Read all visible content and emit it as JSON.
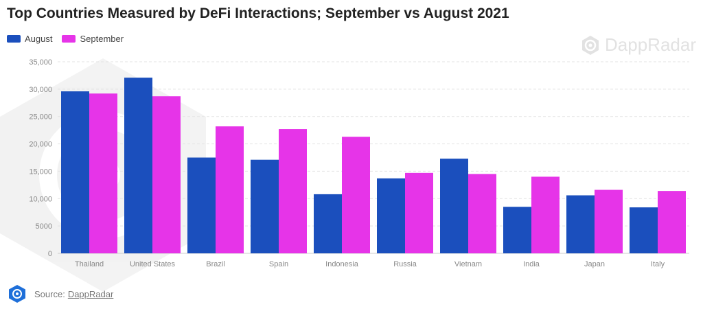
{
  "title": "Top Countries Measured by DeFi Interactions; September vs August 2021",
  "legend": {
    "august": "August",
    "september": "September"
  },
  "watermark": {
    "text": "DappRadar",
    "icon": "dappradar-logo-icon"
  },
  "footer": {
    "prefix": "Source:",
    "link": "DappRadar",
    "icon": "dappradar-logo-icon"
  },
  "colors": {
    "august": "#1b4fbd",
    "september": "#e634e8",
    "grid": "#e3e3e3"
  },
  "chart_data": {
    "type": "bar",
    "title": "Top Countries Measured by DeFi Interactions; September vs August 2021",
    "xlabel": "",
    "ylabel": "",
    "ylim": [
      0,
      35000
    ],
    "yticks": [
      "0",
      "5000",
      "10,000",
      "15,000",
      "20,000",
      "25,000",
      "30,000",
      "35,000"
    ],
    "categories": [
      "Thailand",
      "United States",
      "Brazil",
      "Spain",
      "Indonesia",
      "Russia",
      "Vietnam",
      "India",
      "Japan",
      "Italy"
    ],
    "series": [
      {
        "name": "August",
        "values": [
          29600,
          32100,
          17500,
          17100,
          10800,
          13700,
          17300,
          8500,
          10600,
          8400
        ]
      },
      {
        "name": "September",
        "values": [
          29200,
          28700,
          23200,
          22700,
          21300,
          14700,
          14500,
          14000,
          11600,
          11400
        ]
      }
    ],
    "grid": true,
    "legend_position": "top-left"
  }
}
